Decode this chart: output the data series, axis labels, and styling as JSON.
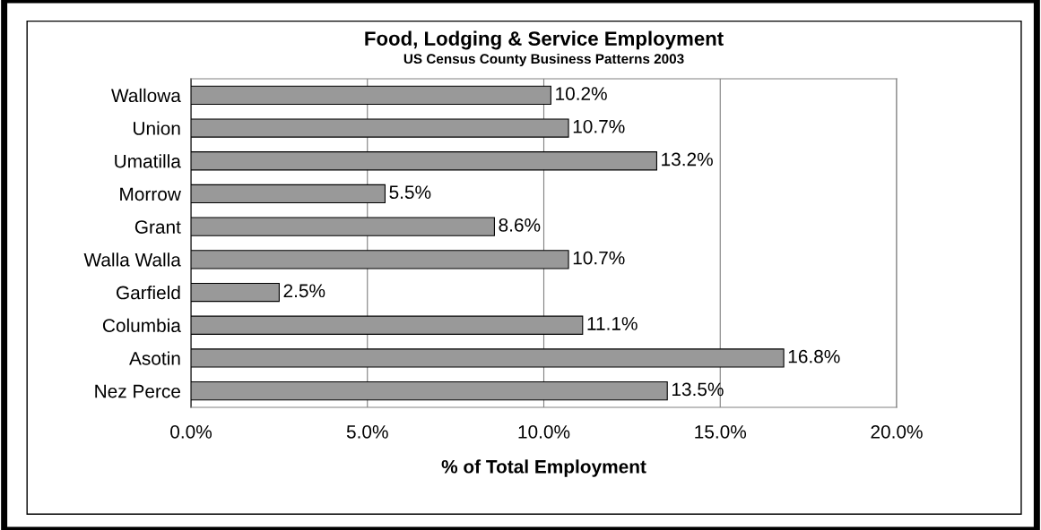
{
  "chart_data": {
    "type": "bar",
    "orientation": "horizontal",
    "title": "Food, Lodging & Service Employment",
    "subtitle": "US Census County Business Patterns 2003",
    "xlabel": "% of Total Employment",
    "categories": [
      "Wallowa",
      "Union",
      "Umatilla",
      "Morrow",
      "Grant",
      "Walla Walla",
      "Garfield",
      "Columbia",
      "Asotin",
      "Nez Perce"
    ],
    "values": [
      10.2,
      10.7,
      13.2,
      5.5,
      8.6,
      10.7,
      2.5,
      11.1,
      16.8,
      13.5
    ],
    "value_labels": [
      "10.2%",
      "10.7%",
      "13.2%",
      "5.5%",
      "8.6%",
      "10.7%",
      "2.5%",
      "11.1%",
      "16.8%",
      "13.5%"
    ],
    "color": "#999999",
    "xlim": [
      0,
      20
    ],
    "xticks": [
      {
        "value": 0,
        "label": "0.0%"
      },
      {
        "value": 5,
        "label": "5.0%"
      },
      {
        "value": 10,
        "label": "10.0%"
      },
      {
        "value": 15,
        "label": "15.0%"
      },
      {
        "value": 20,
        "label": "20.0%"
      }
    ],
    "grid": "x",
    "legend": false
  }
}
